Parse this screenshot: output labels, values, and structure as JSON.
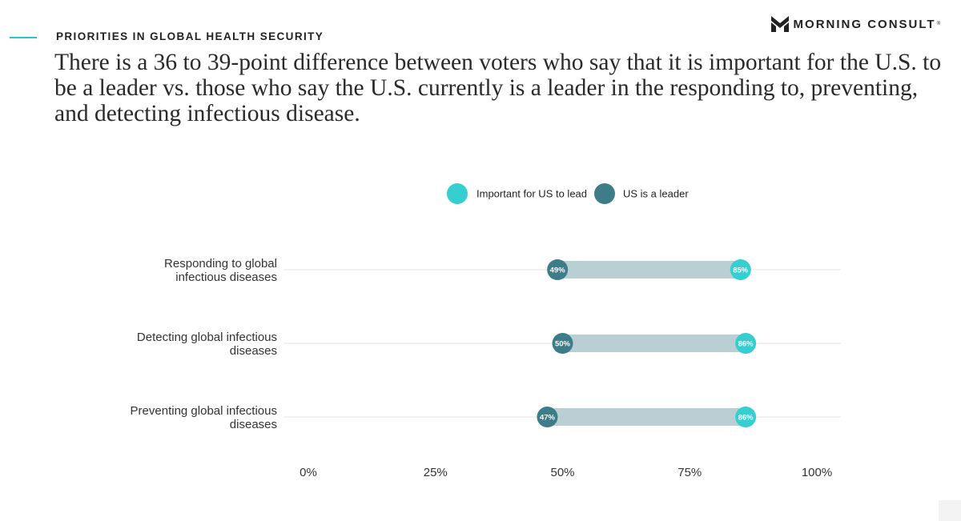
{
  "header": {
    "eyebrow": "PRIORITIES IN GLOBAL HEALTH SECURITY",
    "headline": "There is a 36 to 39-point difference between voters who say that it is important for the U.S. to be a leader vs. those who say the U.S. currently is a leader in the responding to, preventing, and detecting infectious disease.",
    "brand": "MORNING CONSULT",
    "brand_mark": "®"
  },
  "colors": {
    "important": "#35cfd1",
    "leader": "#3d7c89",
    "connector": "#b9cfd3",
    "gridline": "#e3e3e3",
    "accent": "#2ec4c9"
  },
  "chart_data": {
    "type": "dumbbell",
    "categories": [
      [
        "Responding to global",
        "infectious diseases"
      ],
      [
        "Detecting global infectious",
        "diseases"
      ],
      [
        "Preventing global infectious",
        "diseases"
      ]
    ],
    "series": [
      {
        "name": "Important for US to lead",
        "values": [
          85,
          86,
          86
        ],
        "labels": [
          "85%",
          "86%",
          "86%"
        ]
      },
      {
        "name": "US is a leader",
        "values": [
          49,
          50,
          47
        ],
        "labels": [
          "49%",
          "50%",
          "47%"
        ]
      }
    ],
    "x_ticks": [
      0,
      25,
      50,
      75,
      100
    ],
    "x_tick_labels": [
      "0%",
      "25%",
      "50%",
      "75%",
      "100%"
    ],
    "xlim": [
      0,
      100
    ],
    "legend": "top-center",
    "grid": true
  }
}
